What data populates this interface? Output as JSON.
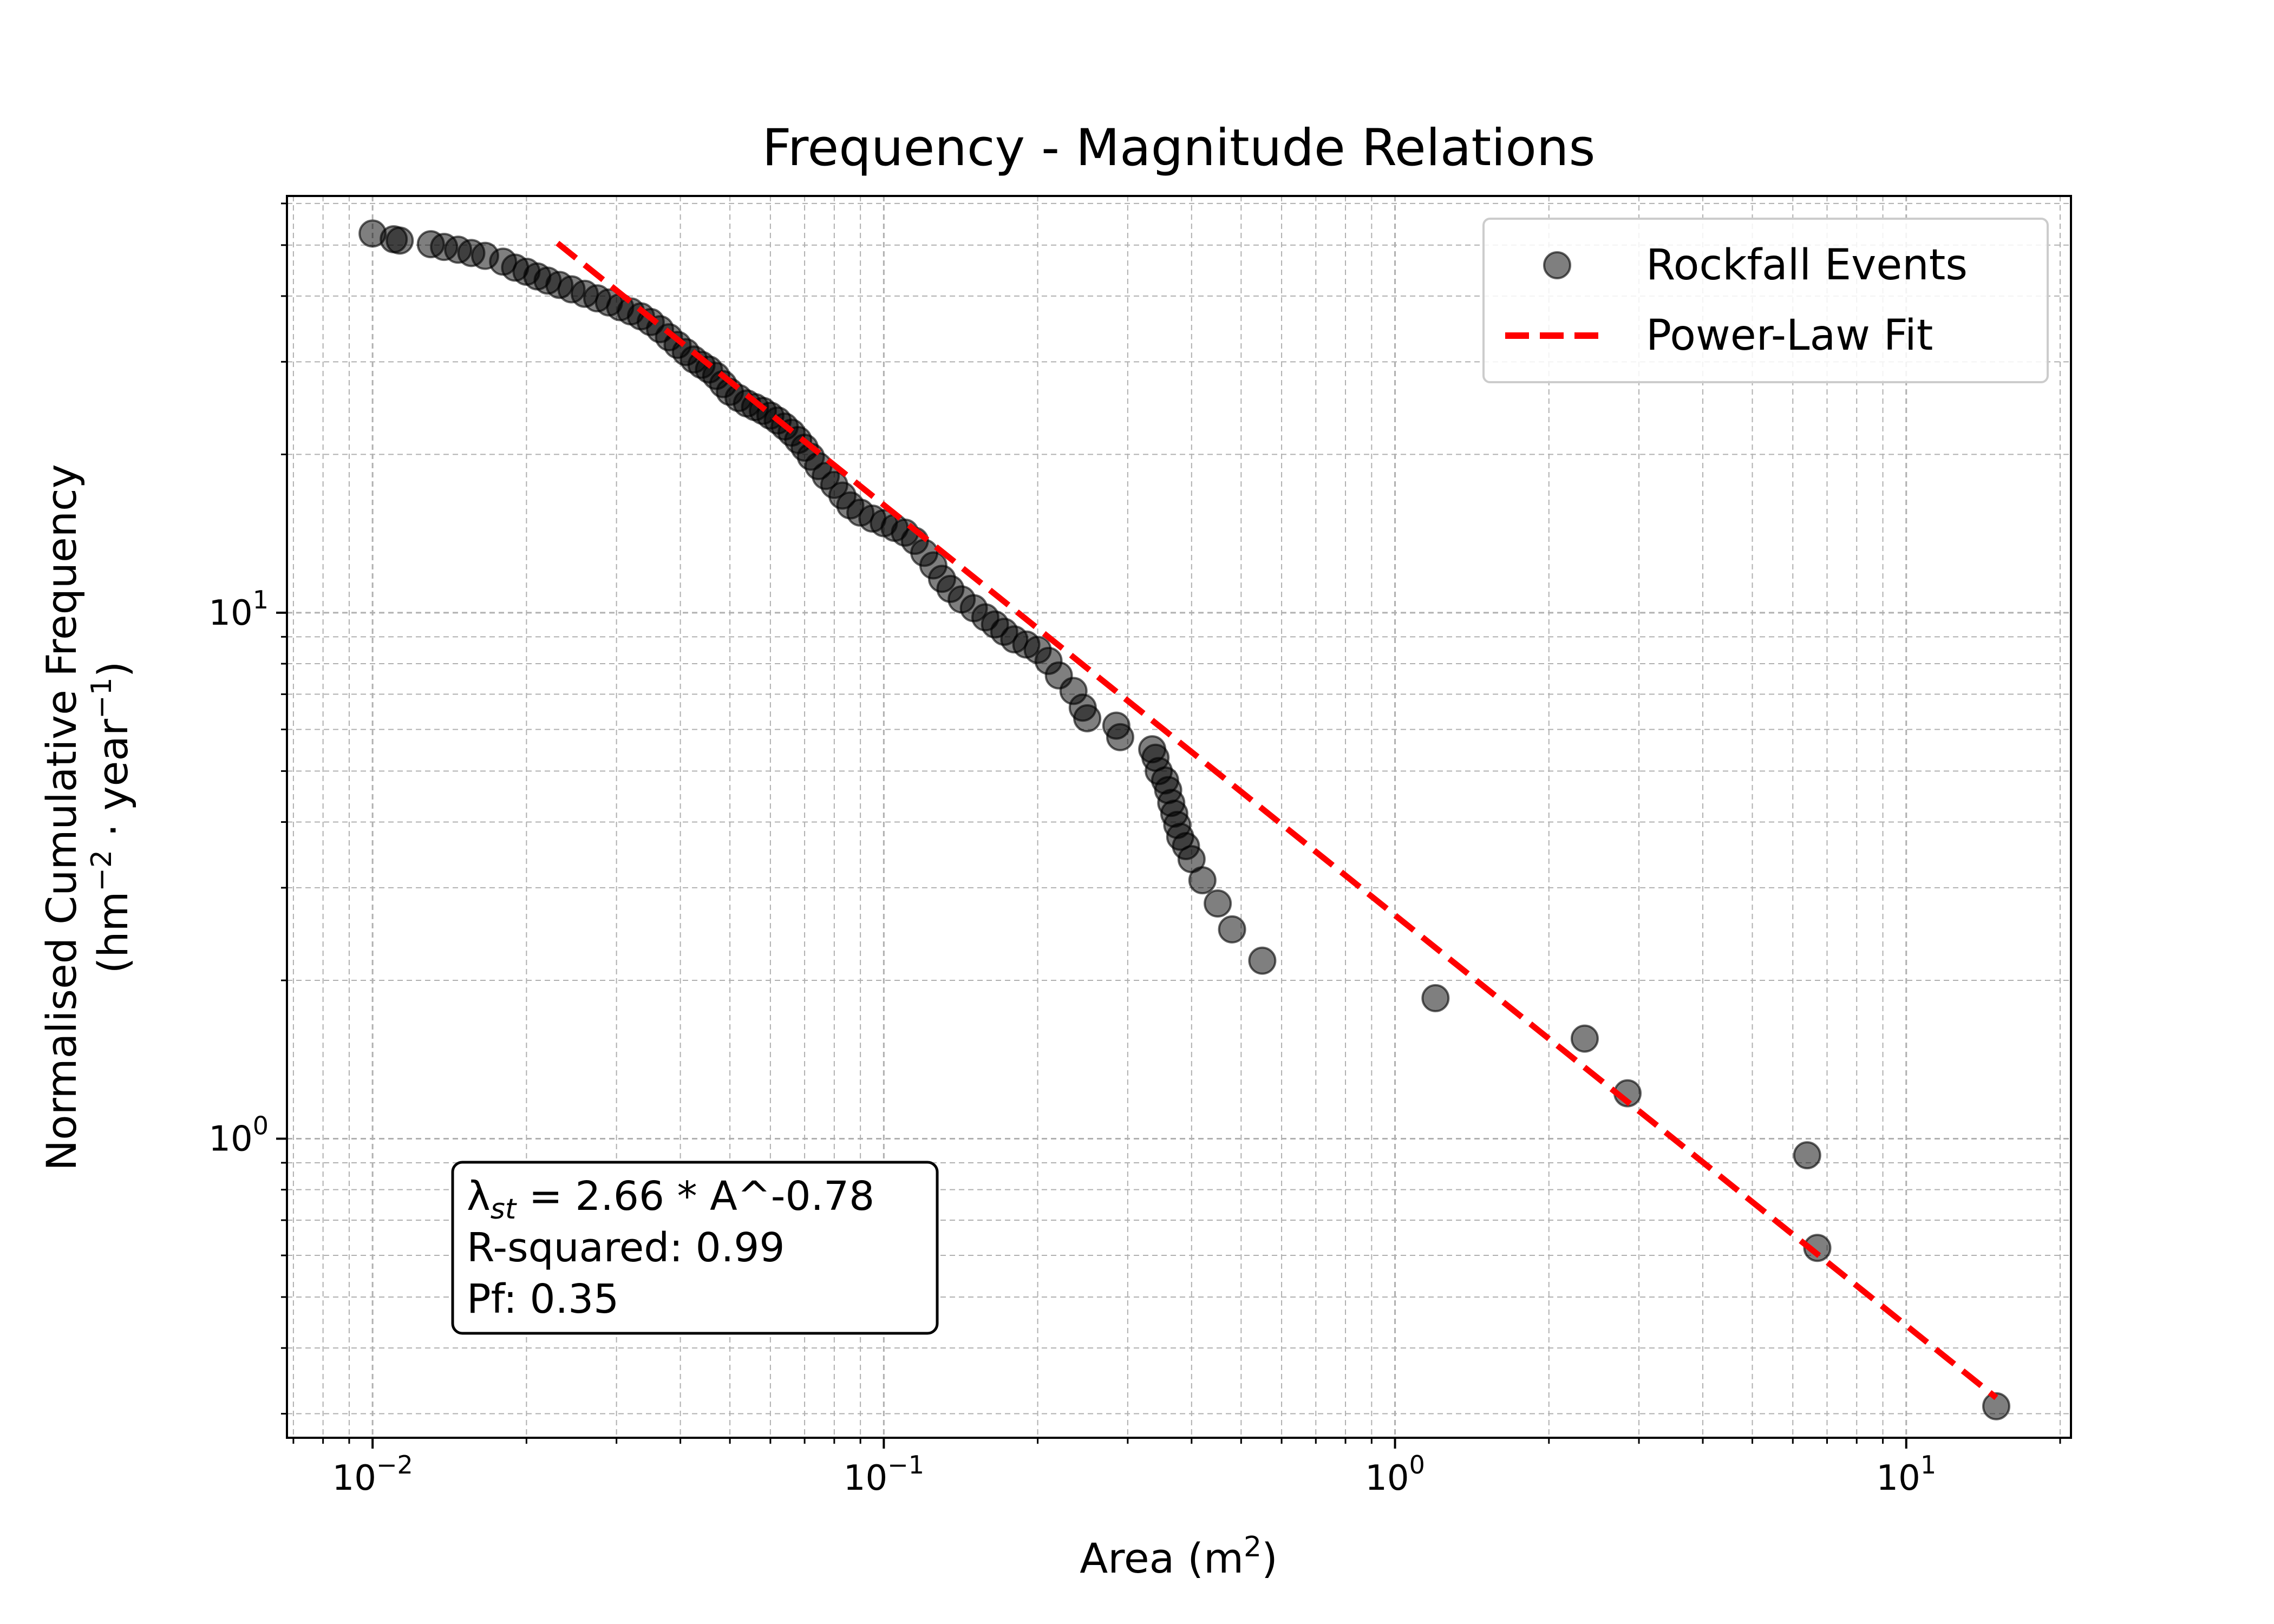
{
  "chart_data": {
    "type": "scatter",
    "title": "Frequency - Magnitude Relations",
    "xlabel_prefix": "Area (m",
    "xlabel_sup": "2",
    "xlabel_suffix": ")",
    "ylabel_line1": "Normalised Cumulative Frequency",
    "ylabel_line2": {
      "p1": "(hm",
      "s1": "−2",
      "p2": " · year",
      "s2": "−1",
      "p3": ")"
    },
    "x_scale": "log",
    "y_scale": "log",
    "xlim": [
      0.0068,
      21
    ],
    "ylim": [
      0.27,
      62
    ],
    "grid": true,
    "legend_position": "top-right",
    "x_ticks": [
      {
        "value": 0.01,
        "base": "10",
        "exp": "−2"
      },
      {
        "value": 0.1,
        "base": "10",
        "exp": "−1"
      },
      {
        "value": 1,
        "base": "10",
        "exp": "0"
      },
      {
        "value": 10,
        "base": "10",
        "exp": "1"
      }
    ],
    "y_ticks": [
      {
        "value": 1,
        "base": "10",
        "exp": "0"
      },
      {
        "value": 10,
        "base": "10",
        "exp": "1"
      }
    ],
    "series": [
      {
        "name": "Rockfall Events",
        "kind": "scatter",
        "color": "#000000",
        "points": [
          [
            0.01,
            52.6
          ],
          [
            0.011,
            51.3
          ],
          [
            0.0113,
            51.0
          ],
          [
            0.013,
            50.2
          ],
          [
            0.0138,
            49.6
          ],
          [
            0.0147,
            49.0
          ],
          [
            0.0156,
            48.3
          ],
          [
            0.0166,
            47.7
          ],
          [
            0.018,
            46.5
          ],
          [
            0.019,
            45.3
          ],
          [
            0.02,
            44.5
          ],
          [
            0.021,
            43.6
          ],
          [
            0.022,
            42.8
          ],
          [
            0.0232,
            42.0
          ],
          [
            0.0245,
            41.2
          ],
          [
            0.026,
            40.4
          ],
          [
            0.0275,
            39.6
          ],
          [
            0.029,
            38.9
          ],
          [
            0.0305,
            38.1
          ],
          [
            0.032,
            37.4
          ],
          [
            0.0335,
            36.6
          ],
          [
            0.035,
            35.7
          ],
          [
            0.0365,
            34.6
          ],
          [
            0.038,
            33.4
          ],
          [
            0.0395,
            32.3
          ],
          [
            0.041,
            31.3
          ],
          [
            0.0425,
            30.3
          ],
          [
            0.044,
            29.6
          ],
          [
            0.0455,
            29.0
          ],
          [
            0.047,
            28.2
          ],
          [
            0.0485,
            27.2
          ],
          [
            0.05,
            26.3
          ],
          [
            0.052,
            25.6
          ],
          [
            0.054,
            25.0
          ],
          [
            0.056,
            24.6
          ],
          [
            0.058,
            24.2
          ],
          [
            0.06,
            23.7
          ],
          [
            0.062,
            23.2
          ],
          [
            0.064,
            22.6
          ],
          [
            0.066,
            22.0
          ],
          [
            0.068,
            21.3
          ],
          [
            0.07,
            20.6
          ],
          [
            0.072,
            19.8
          ],
          [
            0.0745,
            19.0
          ],
          [
            0.077,
            18.2
          ],
          [
            0.08,
            17.5
          ],
          [
            0.083,
            16.7
          ],
          [
            0.086,
            16.0
          ],
          [
            0.09,
            15.5
          ],
          [
            0.095,
            15.1
          ],
          [
            0.1,
            14.8
          ],
          [
            0.105,
            14.5
          ],
          [
            0.11,
            14.2
          ],
          [
            0.115,
            13.7
          ],
          [
            0.12,
            13.0
          ],
          [
            0.125,
            12.3
          ],
          [
            0.13,
            11.6
          ],
          [
            0.135,
            11.1
          ],
          [
            0.142,
            10.6
          ],
          [
            0.15,
            10.2
          ],
          [
            0.158,
            9.8
          ],
          [
            0.165,
            9.5
          ],
          [
            0.172,
            9.2
          ],
          [
            0.18,
            8.9
          ],
          [
            0.19,
            8.7
          ],
          [
            0.2,
            8.5
          ],
          [
            0.21,
            8.1
          ],
          [
            0.22,
            7.6
          ],
          [
            0.235,
            7.1
          ],
          [
            0.245,
            6.6
          ],
          [
            0.25,
            6.3
          ],
          [
            0.285,
            6.1
          ],
          [
            0.29,
            5.8
          ],
          [
            0.335,
            5.5
          ],
          [
            0.34,
            5.3
          ],
          [
            0.345,
            5.0
          ],
          [
            0.355,
            4.8
          ],
          [
            0.36,
            4.6
          ],
          [
            0.365,
            4.35
          ],
          [
            0.37,
            4.15
          ],
          [
            0.375,
            3.95
          ],
          [
            0.38,
            3.75
          ],
          [
            0.39,
            3.6
          ],
          [
            0.4,
            3.4
          ],
          [
            0.42,
            3.1
          ],
          [
            0.45,
            2.8
          ],
          [
            0.48,
            2.5
          ],
          [
            0.55,
            2.18
          ],
          [
            1.2,
            1.85
          ],
          [
            2.35,
            1.55
          ],
          [
            2.85,
            1.22
          ],
          [
            6.4,
            0.93
          ],
          [
            6.7,
            0.62
          ],
          [
            15.0,
            0.31
          ]
        ]
      },
      {
        "name": "Power-Law Fit",
        "kind": "line",
        "color": "#ff0000",
        "equation": {
          "a": 2.66,
          "b": -0.78
        },
        "x_range": [
          0.023,
          15.0
        ]
      }
    ],
    "annotation": {
      "line1_prefix": "λ",
      "line1_sub": "st",
      "line1_rest": " = 2.66 * A^-0.78",
      "line2": "R-squared: 0.99",
      "line3": "Pf: 0.35"
    }
  }
}
